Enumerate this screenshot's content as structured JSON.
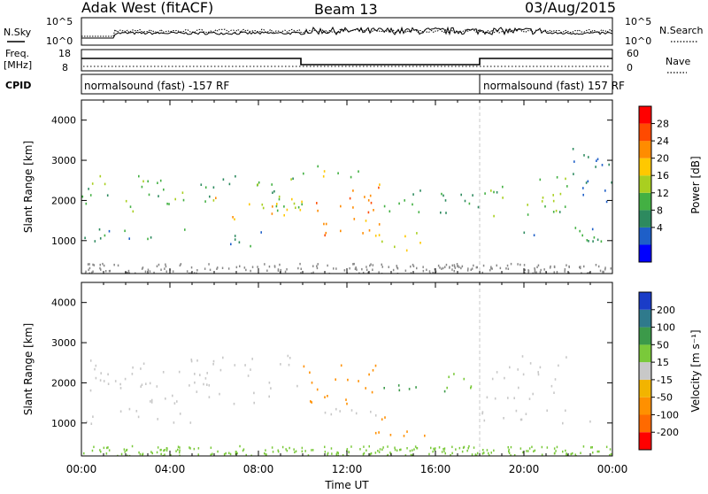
{
  "header": {
    "station": "Adak West (fitACF)",
    "beam": "Beam 13",
    "date": "03/Aug/2015"
  },
  "top_panels": {
    "nsky_label": "N.Sky",
    "nsearch_label": "N.Search",
    "noise_ticks_left": [
      "10^5",
      "10^0"
    ],
    "noise_ticks_right": [
      "10^5",
      "10^0"
    ],
    "freq_label_1": "Freq.",
    "freq_label_2": "[MHz]",
    "freq_ticks": [
      "18",
      "8"
    ],
    "nave_label": "Nave",
    "nave_ticks": [
      "60",
      "0"
    ],
    "cpid_label": "CPID",
    "cpid_segments": [
      {
        "text": "normalsound (fast) -157 RF",
        "start_hour": 0,
        "end_hour": 18
      },
      {
        "text": "normalsound (fast) 157 RF",
        "start_hour": 18,
        "end_hour": 24
      }
    ]
  },
  "axes": {
    "x_ticks": [
      "00:00",
      "04:00",
      "08:00",
      "12:00",
      "16:00",
      "20:00",
      "00:00"
    ],
    "x_label": "Time UT",
    "y_label": "Slant Range [km]",
    "y_ticks": [
      "4000",
      "3000",
      "2000",
      "1000"
    ],
    "x_range_hours": [
      0,
      24
    ],
    "y_range_km": [
      180,
      4500
    ]
  },
  "colorbars": {
    "power": {
      "label": "Power [dB]",
      "ticks": [
        "28",
        "24",
        "20",
        "16",
        "12",
        "8",
        "4"
      ],
      "colors": [
        "#0000ff",
        "#1e5fc8",
        "#2d8a5f",
        "#43b043",
        "#a9cf20",
        "#ffc800",
        "#ff8c00",
        "#ff4a00",
        "#ff0000"
      ]
    },
    "velocity": {
      "label": "Velocity [m s⁻¹]",
      "ticks": [
        "200",
        "100",
        "50",
        "15",
        "-15",
        "-50",
        "-100",
        "-200"
      ],
      "colors": [
        "#1a3cc8",
        "#2f7a8c",
        "#3c9a4a",
        "#7ac93a",
        "#c8c8c8",
        "#f2b400",
        "#ff9000",
        "#ff6a00",
        "#ff0000"
      ]
    }
  },
  "chart_data": {
    "type": "heatmap",
    "x_unit": "hours UT",
    "y_unit": "km",
    "power_regions": [
      {
        "t0": 0.0,
        "t1": 10.0,
        "r0": 1750,
        "r1": 2700,
        "level": 14
      },
      {
        "t0": 6.0,
        "t1": 10.0,
        "r0": 1550,
        "r1": 2100,
        "level": 24
      },
      {
        "t0": 0.0,
        "t1": 5.0,
        "r0": 1000,
        "r1": 1400,
        "level": 11
      },
      {
        "t0": 6.5,
        "t1": 8.5,
        "r0": 850,
        "r1": 1350,
        "level": 10
      },
      {
        "t0": 10.0,
        "t1": 13.5,
        "r0": 1150,
        "r1": 2000,
        "level": 27
      },
      {
        "t0": 11.0,
        "t1": 13.5,
        "r0": 2000,
        "r1": 2500,
        "level": 25
      },
      {
        "t0": 10.0,
        "t1": 13.0,
        "r0": 2500,
        "r1": 2900,
        "level": 17
      },
      {
        "t0": 13.5,
        "t1": 18.0,
        "r0": 1600,
        "r1": 2300,
        "level": 12
      },
      {
        "t0": 13.0,
        "t1": 15.5,
        "r0": 700,
        "r1": 1250,
        "level": 20
      },
      {
        "t0": 18.2,
        "t1": 22.0,
        "r0": 1600,
        "r1": 2700,
        "level": 15
      },
      {
        "t0": 18.0,
        "t1": 24.0,
        "r0": 1000,
        "r1": 1350,
        "level": 11
      },
      {
        "t0": 22.0,
        "t1": 24.0,
        "r0": 1900,
        "r1": 3400,
        "level": 8
      }
    ],
    "velocity_regions": [
      {
        "t0": 0.0,
        "t1": 10.0,
        "r0": 1500,
        "r1": 2700,
        "level": 0
      },
      {
        "t0": 0.0,
        "t1": 5.0,
        "r0": 1000,
        "r1": 1400,
        "level": 0
      },
      {
        "t0": 10.0,
        "t1": 13.5,
        "r0": 1500,
        "r1": 2500,
        "level": -60
      },
      {
        "t0": 10.0,
        "t1": 13.5,
        "r0": 1100,
        "r1": 1500,
        "level": 0
      },
      {
        "t0": 13.5,
        "t1": 16.5,
        "r0": 1650,
        "r1": 2000,
        "level": 60
      },
      {
        "t0": 13.0,
        "t1": 15.5,
        "r0": 700,
        "r1": 1250,
        "level": -60
      },
      {
        "t0": 16.0,
        "t1": 18.0,
        "r0": 1800,
        "r1": 2300,
        "level": 30
      },
      {
        "t0": 18.2,
        "t1": 22.0,
        "r0": 1600,
        "r1": 2700,
        "level": 0
      },
      {
        "t0": 18.0,
        "t1": 24.0,
        "r0": 1000,
        "r1": 1350,
        "level": 0
      }
    ]
  }
}
